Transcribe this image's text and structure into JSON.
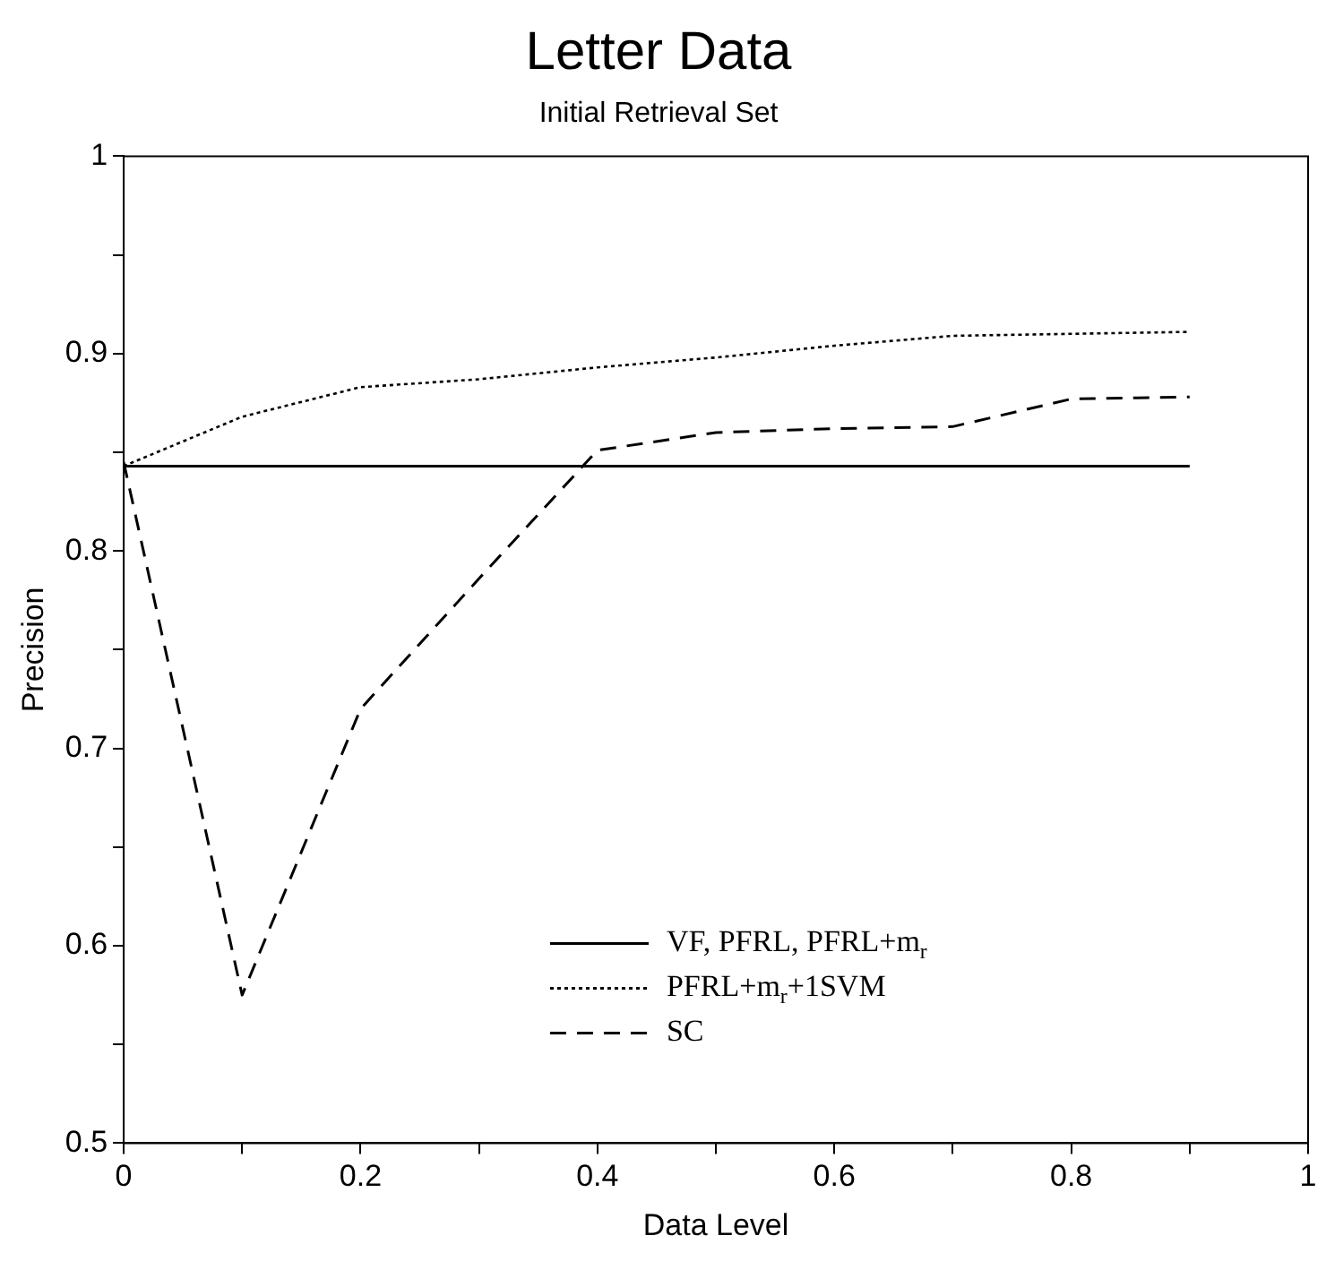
{
  "chart_data": {
    "type": "line",
    "title": "Letter Data",
    "subtitle": "Initial Retrieval Set",
    "xlabel": "Data Level",
    "ylabel": "Precision",
    "x": [
      0,
      0.1,
      0.2,
      0.3,
      0.4,
      0.5,
      0.6,
      0.7,
      0.8,
      0.9
    ],
    "xlim": [
      0,
      1
    ],
    "xticks": [
      0,
      {
        "value": 0.1,
        "label": null
      },
      0.2,
      {
        "value": 0.3,
        "label": null
      },
      0.4,
      {
        "value": 0.5,
        "label": null
      },
      0.6,
      {
        "value": 0.7,
        "label": null
      },
      0.8,
      {
        "value": 0.9,
        "label": null
      },
      1
    ],
    "ylim": [
      0.5,
      1
    ],
    "yticks": [
      0.5,
      {
        "value": 0.55,
        "label": null
      },
      0.6,
      {
        "value": 0.65,
        "label": null
      },
      0.7,
      {
        "value": 0.75,
        "label": null
      },
      0.8,
      {
        "value": 0.85,
        "label": null
      },
      0.9,
      {
        "value": 0.95,
        "label": null
      },
      1
    ],
    "grid": false,
    "legend": "bottom right",
    "marker": "none",
    "series": [
      {
        "name": "VF, PFRL, PFRL+m$_{r}$",
        "color": "#000000",
        "line_style": "solid",
        "values": [
          0.843,
          0.843,
          0.843,
          0.843,
          0.843,
          0.843,
          0.843,
          0.843,
          0.843,
          0.843
        ]
      },
      {
        "name": "PFRL+m$_{r}$+1SVM",
        "color": "#000000",
        "line_style": "dotted",
        "values": [
          0.843,
          0.868,
          0.883,
          0.887,
          0.893,
          0.898,
          0.904,
          0.909,
          0.91,
          0.911
        ]
      },
      {
        "name": "SC",
        "color": "#000000",
        "line_style": "dashed",
        "values": [
          0.845,
          0.575,
          0.72,
          0.786,
          0.851,
          0.86,
          0.862,
          0.863,
          0.877,
          0.878
        ]
      }
    ]
  }
}
